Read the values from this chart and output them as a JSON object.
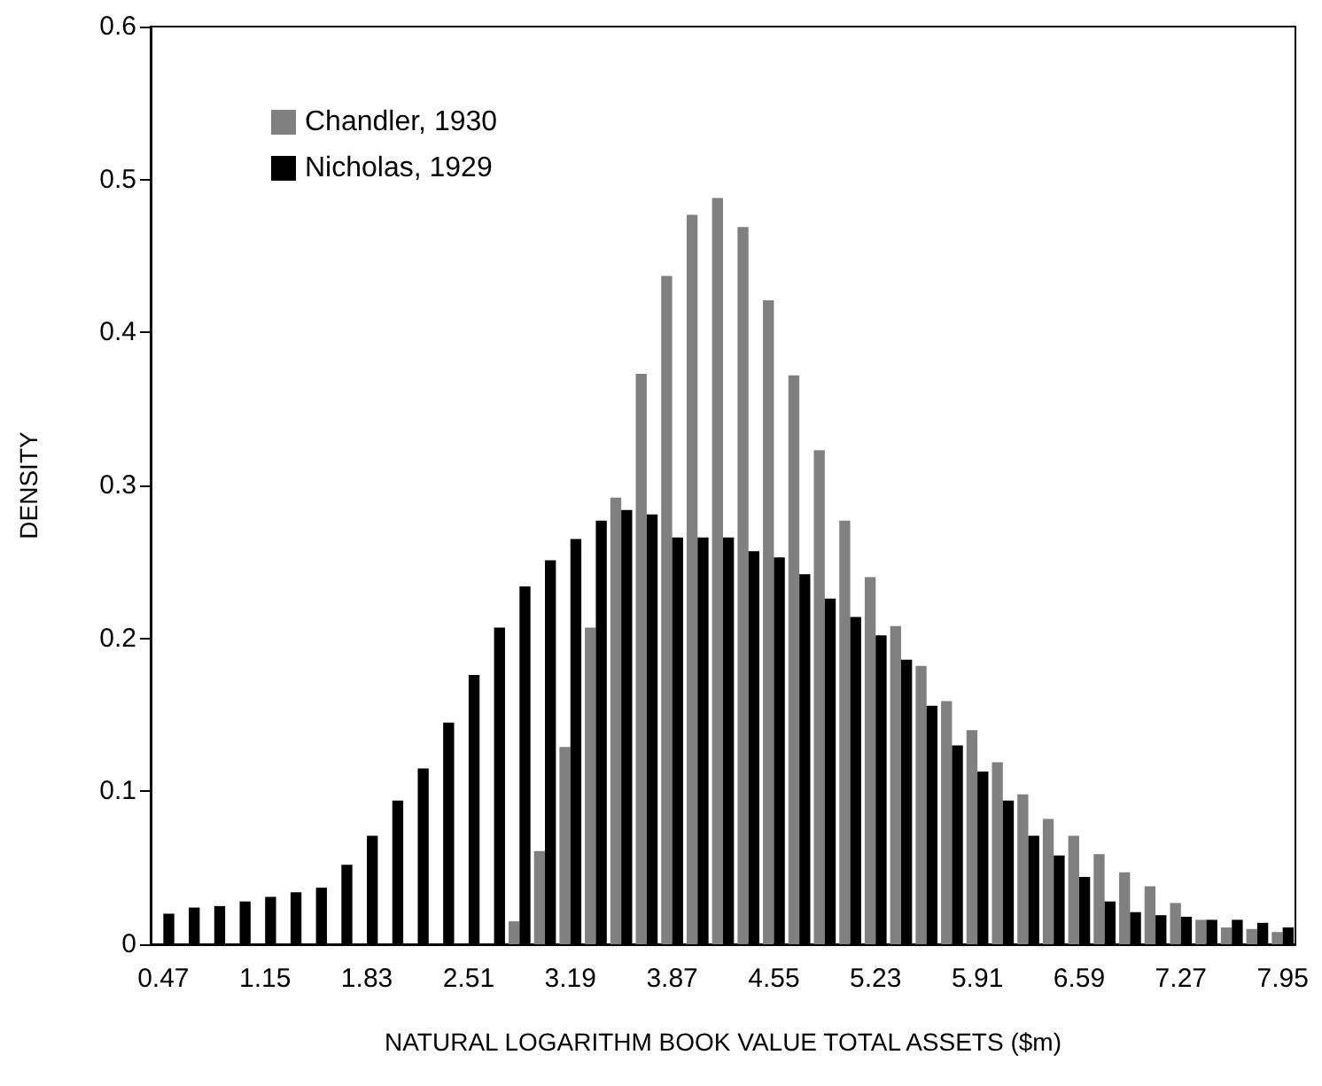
{
  "chart_data": {
    "type": "bar",
    "xlabel": "NATURAL LOGARITHM BOOK VALUE TOTAL ASSETS ($m)",
    "ylabel": "DENSITY",
    "categories": [
      "0.47",
      null,
      null,
      null,
      "1.15",
      null,
      null,
      null,
      "1.83",
      null,
      null,
      null,
      "2.51",
      null,
      null,
      null,
      "3.19",
      null,
      null,
      null,
      "3.87",
      null,
      null,
      null,
      "4.55",
      null,
      null,
      null,
      "5.23",
      null,
      null,
      null,
      "5.91",
      null,
      null,
      null,
      "6.59",
      null,
      null,
      null,
      "7.27",
      null,
      null,
      null,
      "7.95"
    ],
    "series": [
      {
        "name": "Chandler, 1930",
        "color": "#808080",
        "values": [
          null,
          null,
          null,
          null,
          null,
          null,
          null,
          null,
          null,
          null,
          null,
          null,
          null,
          null,
          0.015,
          0.061,
          0.129,
          0.207,
          0.292,
          0.373,
          0.437,
          0.477,
          0.488,
          0.469,
          0.421,
          0.372,
          0.323,
          0.277,
          0.24,
          0.208,
          0.182,
          0.159,
          0.14,
          0.119,
          0.098,
          0.082,
          0.071,
          0.059,
          0.047,
          0.038,
          0.027,
          0.016,
          0.011,
          0.01,
          0.008
        ]
      },
      {
        "name": "Nicholas, 1929",
        "color": "#000000",
        "values": [
          0.02,
          0.024,
          0.025,
          0.028,
          0.031,
          0.034,
          0.037,
          0.052,
          0.071,
          0.094,
          0.115,
          0.145,
          0.176,
          0.207,
          0.234,
          0.251,
          0.265,
          0.277,
          0.284,
          0.281,
          0.266,
          0.266,
          0.266,
          0.257,
          0.253,
          0.242,
          0.226,
          0.214,
          0.202,
          0.186,
          0.156,
          0.13,
          0.113,
          0.094,
          0.071,
          0.058,
          0.044,
          0.028,
          0.021,
          0.019,
          0.018,
          0.016,
          0.016,
          0.014,
          0.011
        ]
      }
    ],
    "ylim": [
      0,
      0.6
    ],
    "yticks": [
      0,
      0.1,
      0.2,
      0.3,
      0.4,
      0.5,
      0.6
    ],
    "grid": false,
    "legend": "top left"
  }
}
